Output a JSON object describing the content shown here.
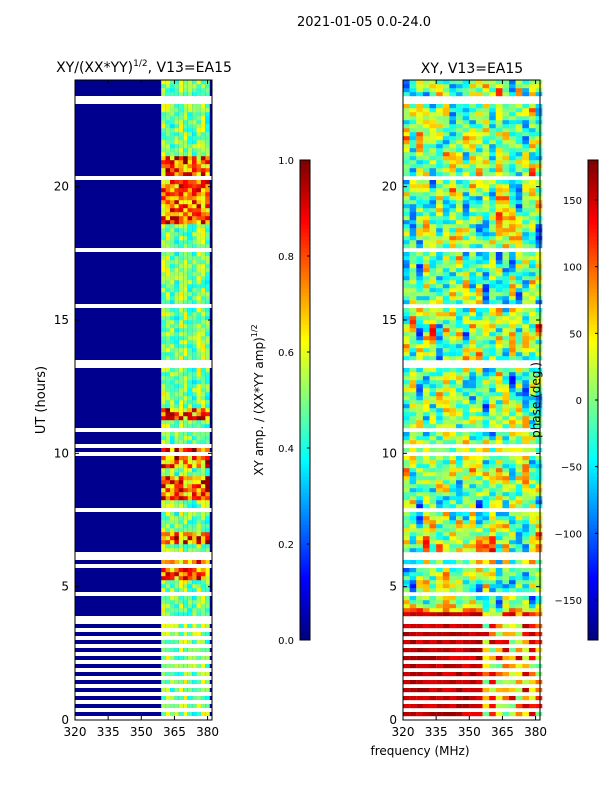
{
  "suptitle": "2021-01-05 0.0-24.0",
  "shared_xlabel": "frequency (MHz)",
  "chart_data": [
    {
      "type": "heatmap",
      "title_main": "XY/(XX*YY)",
      "title_sup": "1/2",
      "title_rest": ", V13=EA15",
      "xlabel": "",
      "ylabel": "UT (hours)",
      "xlim": [
        320,
        382
      ],
      "ylim": [
        0,
        24
      ],
      "xticks": [
        320,
        335,
        350,
        365,
        380
      ],
      "yticks": [
        0,
        5,
        10,
        15,
        20
      ],
      "colorbar": {
        "label_main": "XY amp. / (XX*YY amp)",
        "label_sup": "1/2",
        "range": [
          0.0,
          1.0
        ],
        "ticks": [
          "0.0",
          "0.2",
          "0.4",
          "0.6",
          "0.8",
          "1.0"
        ],
        "tick_values": [
          0.0,
          0.2,
          0.4,
          0.6,
          0.8,
          1.0
        ]
      },
      "seed": 7,
      "bright_bands_hours": [
        [
          5.2,
          5.9
        ],
        [
          6.6,
          6.9
        ],
        [
          8.2,
          9.0
        ],
        [
          9.3,
          10.2
        ],
        [
          11.2,
          11.6
        ],
        [
          18.5,
          21.0
        ]
      ],
      "active_freq_range_MHz": [
        359,
        380
      ]
    },
    {
      "type": "heatmap",
      "title": "XY, V13=EA15",
      "xlabel": "",
      "ylabel": "",
      "xlim": [
        320,
        382
      ],
      "ylim": [
        0,
        24
      ],
      "xticks": [
        320,
        335,
        350,
        365,
        380
      ],
      "yticks": [
        0,
        5,
        10,
        15,
        20
      ],
      "colorbar": {
        "label": "phase (deg.)",
        "range": [
          -180,
          180
        ],
        "ticks": [
          "150",
          "100",
          "50",
          "0",
          "−50",
          "−100",
          "−150"
        ],
        "tick_values": [
          150,
          100,
          50,
          0,
          -50,
          -100,
          -150
        ]
      },
      "seed": 13
    }
  ]
}
